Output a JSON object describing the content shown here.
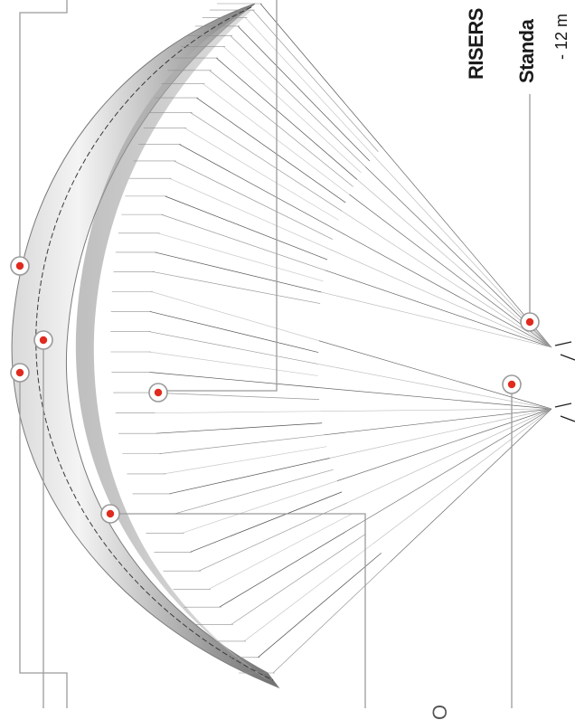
{
  "labels": {
    "risers_heading": "RISERS",
    "standard_heading": "Standa",
    "standard_detail": "- 12 m",
    "bottom_glyph": "O"
  },
  "colors": {
    "marker": "#e02b1f",
    "callout_line": "#9b9b9b",
    "canopy_dark": "#6e6e6e",
    "canopy_light": "#f2f2f2"
  },
  "markers": [
    {
      "name": "marker-top-leading-edge"
    },
    {
      "name": "marker-upper-surface"
    },
    {
      "name": "marker-leading-edge-center"
    },
    {
      "name": "marker-center-lines"
    },
    {
      "name": "marker-lower-surface"
    },
    {
      "name": "marker-riser-a"
    },
    {
      "name": "marker-riser-b"
    }
  ]
}
